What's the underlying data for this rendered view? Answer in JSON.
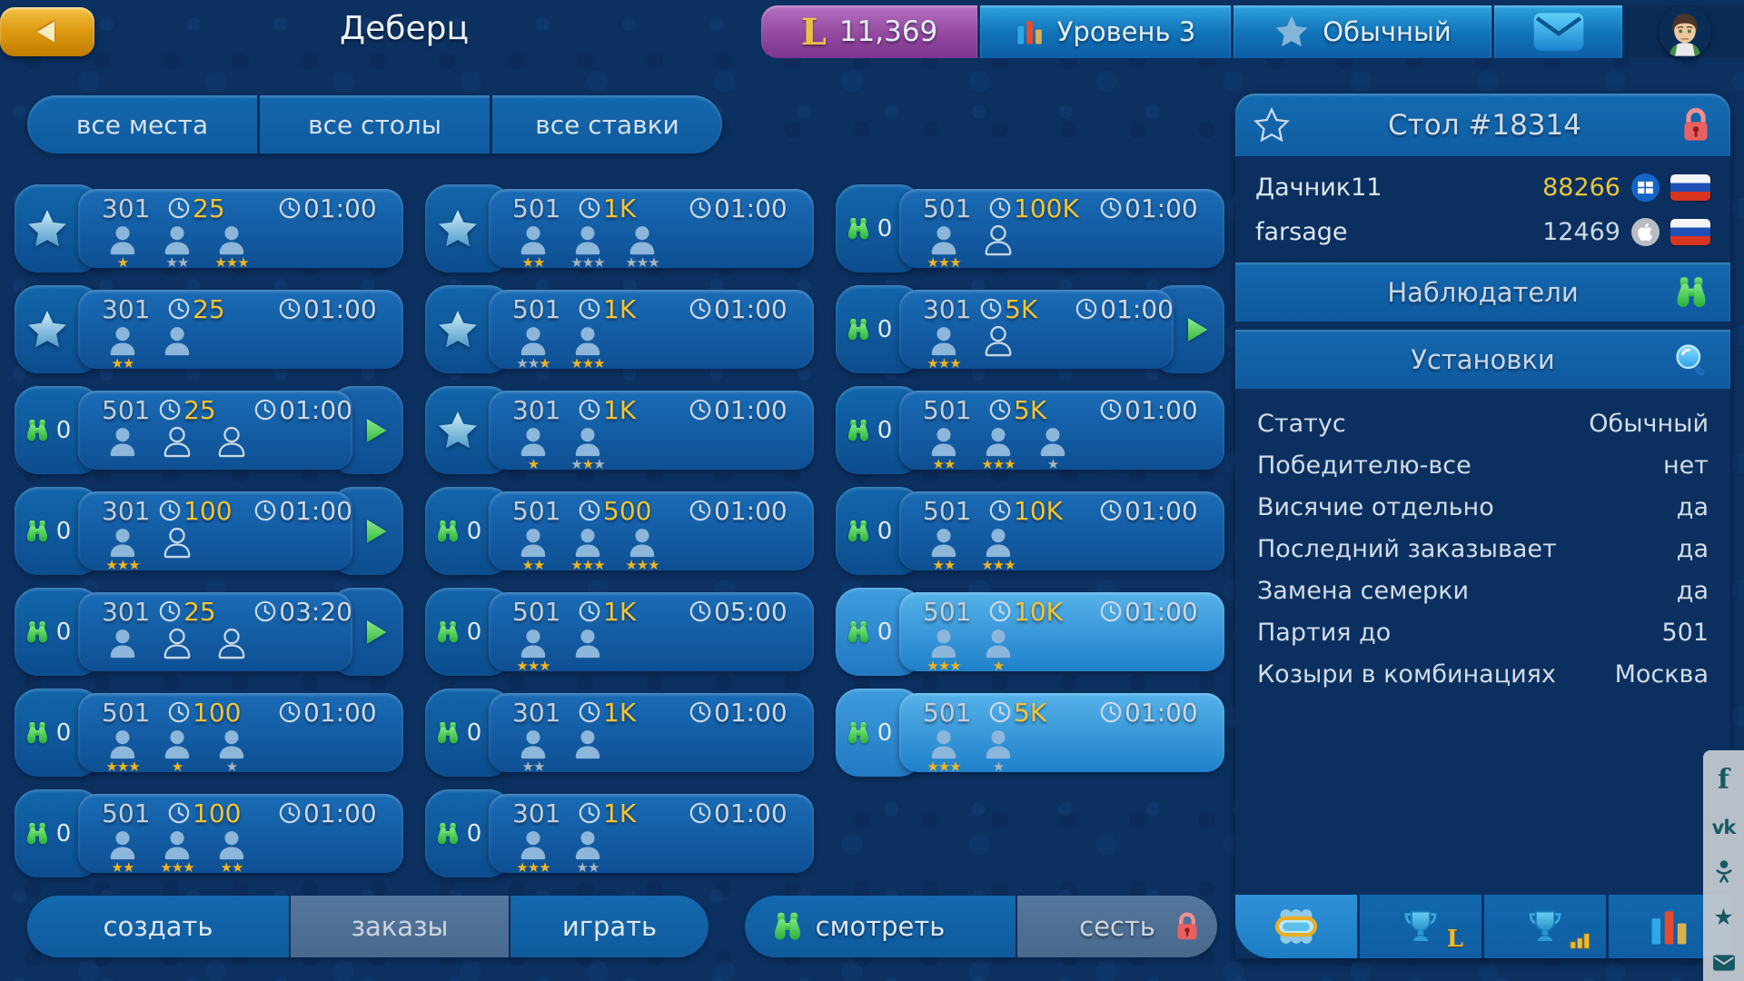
{
  "colors": {
    "gold_accent": "#f2c433",
    "selected_card_blue": "#56b2e9",
    "green_accent": "#3bc24a",
    "lock_red": "#e86060",
    "currency_purple": "#94499f",
    "badge_blue": "#1173b8"
  },
  "top_bar": {
    "title": "Деберц",
    "currency": {
      "symbol": "L",
      "value": "11,369"
    },
    "level": {
      "label": "Уровень 3"
    },
    "status": {
      "label": "Обычный"
    }
  },
  "filters": {
    "items": [
      {
        "label": "все места"
      },
      {
        "label": "все столы"
      },
      {
        "label": "все ставки"
      }
    ]
  },
  "lobby": {
    "cards": [
      {
        "tab": "star",
        "points": "301",
        "stake": "25",
        "time": "01:00",
        "arrow": false,
        "selected": false,
        "players": [
          {
            "filled": true,
            "stars": [
              "gold"
            ]
          },
          {
            "filled": true,
            "stars": [
              "gray",
              "gray"
            ]
          },
          {
            "filled": true,
            "stars": [
              "gold",
              "gold",
              "gold"
            ]
          }
        ]
      },
      {
        "tab": "star",
        "points": "501",
        "stake": "1K",
        "time": "01:00",
        "arrow": false,
        "selected": false,
        "players": [
          {
            "filled": true,
            "stars": [
              "gold",
              "gold"
            ]
          },
          {
            "filled": true,
            "stars": [
              "gray",
              "gray",
              "gray"
            ]
          },
          {
            "filled": true,
            "stars": [
              "gray",
              "gray",
              "gray"
            ]
          }
        ]
      },
      {
        "tab": "watch",
        "watchers": "0",
        "points": "501",
        "stake": "100K",
        "time": "01:00",
        "arrow": false,
        "selected": false,
        "players": [
          {
            "filled": true,
            "stars": [
              "gold",
              "gold",
              "gold"
            ]
          },
          {
            "filled": false,
            "stars": []
          }
        ]
      },
      {
        "tab": "star",
        "points": "301",
        "stake": "25",
        "time": "01:00",
        "arrow": false,
        "selected": false,
        "players": [
          {
            "filled": true,
            "stars": [
              "gold",
              "gold"
            ]
          },
          {
            "filled": true,
            "stars": []
          }
        ]
      },
      {
        "tab": "star",
        "points": "501",
        "stake": "1K",
        "time": "01:00",
        "arrow": false,
        "selected": false,
        "players": [
          {
            "filled": true,
            "stars": [
              "gray",
              "gray",
              "gold"
            ]
          },
          {
            "filled": true,
            "stars": [
              "gold",
              "gold",
              "gold"
            ]
          }
        ]
      },
      {
        "tab": "watch",
        "watchers": "0",
        "points": "301",
        "stake": "5K",
        "time": "01:00",
        "arrow": true,
        "selected": false,
        "players": [
          {
            "filled": true,
            "stars": [
              "gold",
              "gold",
              "gold"
            ]
          },
          {
            "filled": false,
            "stars": []
          }
        ]
      },
      {
        "tab": "watch",
        "watchers": "0",
        "points": "501",
        "stake": "25",
        "time": "01:00",
        "arrow": true,
        "selected": false,
        "players": [
          {
            "filled": true,
            "stars": []
          },
          {
            "filled": false,
            "stars": []
          },
          {
            "filled": false,
            "stars": []
          }
        ]
      },
      {
        "tab": "star",
        "points": "301",
        "stake": "1K",
        "time": "01:00",
        "arrow": false,
        "selected": false,
        "players": [
          {
            "filled": true,
            "stars": [
              "gold"
            ]
          },
          {
            "filled": true,
            "stars": [
              "gray",
              "gold",
              "gray"
            ]
          }
        ]
      },
      {
        "tab": "watch",
        "watchers": "0",
        "points": "501",
        "stake": "5K",
        "time": "01:00",
        "arrow": false,
        "selected": false,
        "players": [
          {
            "filled": true,
            "stars": [
              "gold",
              "gold"
            ]
          },
          {
            "filled": true,
            "stars": [
              "gold",
              "gold",
              "gold"
            ]
          },
          {
            "filled": true,
            "stars": [
              "gray"
            ]
          }
        ]
      },
      {
        "tab": "watch",
        "watchers": "0",
        "points": "301",
        "stake": "100",
        "time": "01:00",
        "arrow": true,
        "selected": false,
        "players": [
          {
            "filled": true,
            "stars": [
              "gold",
              "gold",
              "gold"
            ]
          },
          {
            "filled": false,
            "stars": []
          }
        ]
      },
      {
        "tab": "watch",
        "watchers": "0",
        "points": "501",
        "stake": "500",
        "time": "01:00",
        "arrow": false,
        "selected": false,
        "players": [
          {
            "filled": true,
            "stars": [
              "gold",
              "gold"
            ]
          },
          {
            "filled": true,
            "stars": [
              "gold",
              "gold",
              "gold"
            ]
          },
          {
            "filled": true,
            "stars": [
              "gold",
              "gold",
              "gold"
            ]
          }
        ]
      },
      {
        "tab": "watch",
        "watchers": "0",
        "points": "501",
        "stake": "10K",
        "time": "01:00",
        "arrow": false,
        "selected": false,
        "players": [
          {
            "filled": true,
            "stars": [
              "gold",
              "gold"
            ]
          },
          {
            "filled": true,
            "stars": [
              "gold",
              "gold",
              "gold"
            ]
          }
        ]
      },
      {
        "tab": "watch",
        "watchers": "0",
        "points": "301",
        "stake": "25",
        "time": "03:20",
        "arrow": true,
        "selected": false,
        "players": [
          {
            "filled": true,
            "stars": []
          },
          {
            "filled": false,
            "stars": []
          },
          {
            "filled": false,
            "stars": []
          }
        ]
      },
      {
        "tab": "watch",
        "watchers": "0",
        "points": "501",
        "stake": "1K",
        "time": "05:00",
        "arrow": false,
        "selected": false,
        "players": [
          {
            "filled": true,
            "stars": [
              "gold",
              "gold",
              "gold"
            ]
          },
          {
            "filled": true,
            "stars": []
          }
        ]
      },
      {
        "tab": "watch",
        "watchers": "0",
        "points": "501",
        "stake": "10K",
        "time": "01:00",
        "arrow": false,
        "selected": true,
        "players": [
          {
            "filled": true,
            "stars": [
              "gold",
              "gold",
              "gold"
            ]
          },
          {
            "filled": true,
            "stars": [
              "gold"
            ]
          }
        ]
      },
      {
        "tab": "watch",
        "watchers": "0",
        "points": "501",
        "stake": "100",
        "time": "01:00",
        "arrow": false,
        "selected": false,
        "players": [
          {
            "filled": true,
            "stars": [
              "gold",
              "gold",
              "gold"
            ]
          },
          {
            "filled": true,
            "stars": [
              "gold"
            ]
          },
          {
            "filled": true,
            "stars": [
              "gray"
            ]
          }
        ]
      },
      {
        "tab": "watch",
        "watchers": "0",
        "points": "301",
        "stake": "1K",
        "time": "01:00",
        "arrow": false,
        "selected": false,
        "players": [
          {
            "filled": true,
            "stars": [
              "gray",
              "gray"
            ]
          },
          {
            "filled": true,
            "stars": []
          }
        ]
      },
      {
        "tab": "watch",
        "watchers": "0",
        "points": "501",
        "stake": "5K",
        "time": "01:00",
        "arrow": false,
        "selected": true,
        "players": [
          {
            "filled": true,
            "stars": [
              "gold",
              "gold",
              "gold"
            ]
          },
          {
            "filled": true,
            "stars": [
              "gray"
            ]
          }
        ]
      },
      {
        "tab": "watch",
        "watchers": "0",
        "points": "501",
        "stake": "100",
        "time": "01:00",
        "arrow": false,
        "selected": false,
        "players": [
          {
            "filled": true,
            "stars": [
              "gold",
              "gold"
            ]
          },
          {
            "filled": true,
            "stars": [
              "gold",
              "gold",
              "gold"
            ]
          },
          {
            "filled": true,
            "stars": [
              "gold",
              "gold"
            ]
          }
        ]
      },
      {
        "tab": "watch",
        "watchers": "0",
        "points": "301",
        "stake": "1K",
        "time": "01:00",
        "arrow": false,
        "selected": false,
        "players": [
          {
            "filled": true,
            "stars": [
              "gold",
              "gold",
              "gold"
            ]
          },
          {
            "filled": true,
            "stars": [
              "gray",
              "gray"
            ]
          }
        ]
      }
    ]
  },
  "bottom_bar": {
    "create": "создать",
    "orders": "заказы",
    "play": "играть",
    "watch": "смотреть",
    "sit": "сесть"
  },
  "table_panel": {
    "title": "Стол #18314",
    "players": [
      {
        "name": "Дачник11",
        "score": "88266",
        "score_style": "gold",
        "platform": "windows",
        "flag": "ru"
      },
      {
        "name": "farsage",
        "score": "12469",
        "score_style": "light",
        "platform": "apple",
        "flag": "ru"
      }
    ],
    "observers_label": "Наблюдатели",
    "settings_label": "Установки",
    "settings": [
      {
        "label": "Статус",
        "value": "Обычный"
      },
      {
        "label": "Победителю-все",
        "value": "нет"
      },
      {
        "label": "Висячие отдельно",
        "value": "да"
      },
      {
        "label": "Последний заказывает",
        "value": "да"
      },
      {
        "label": "Замена семерки",
        "value": "да"
      },
      {
        "label": "Партия до",
        "value": "501"
      },
      {
        "label": "Козыри в комбинациях",
        "value": "Москва"
      }
    ],
    "footer_icons": [
      {
        "name": "table-seats",
        "selected": true
      },
      {
        "name": "trophy-league",
        "selected": false
      },
      {
        "name": "trophy-stats",
        "selected": false
      },
      {
        "name": "stats-bars",
        "selected": false
      }
    ]
  },
  "social": {
    "icons": [
      "facebook",
      "vk",
      "odnoklassniki",
      "star",
      "mail"
    ]
  }
}
